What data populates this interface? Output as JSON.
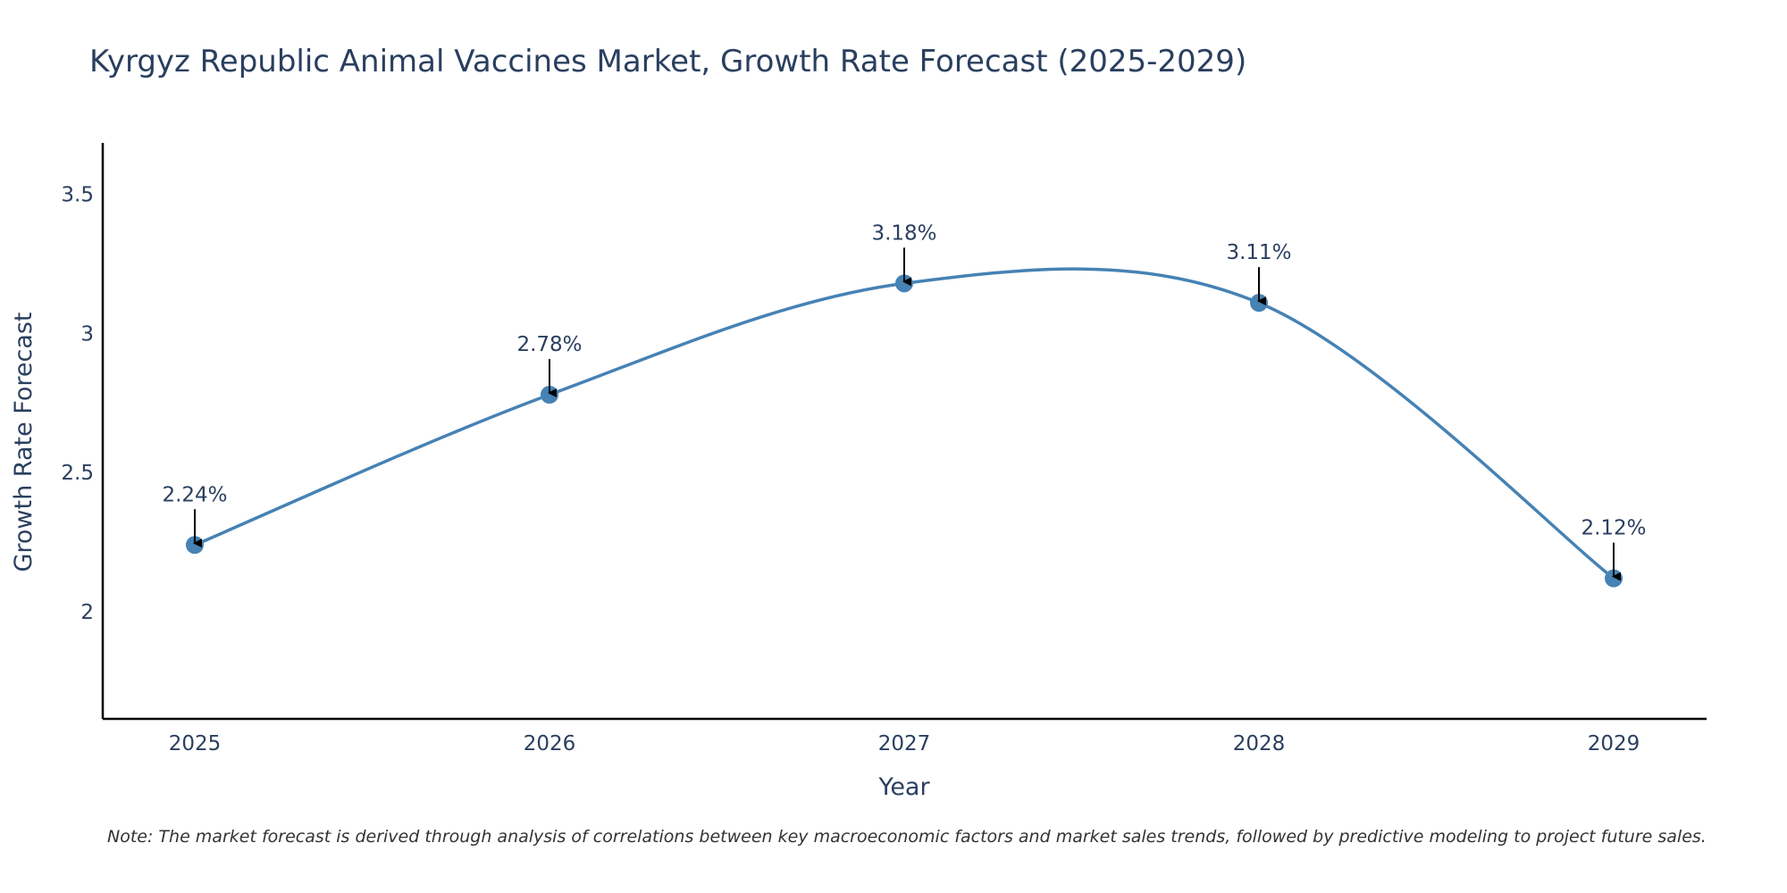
{
  "chart_data": {
    "type": "line",
    "title": "Kyrgyz Republic Animal Vaccines Market, Growth Rate Forecast (2025-2029)",
    "xlabel": "Year",
    "ylabel": "Growth Rate Forecast",
    "categories": [
      "2025",
      "2026",
      "2027",
      "2028",
      "2029"
    ],
    "series": [
      {
        "name": "Growth Rate Forecast",
        "values": [
          2.24,
          2.78,
          3.18,
          3.11,
          2.12
        ],
        "labels": [
          "2.24%",
          "2.78%",
          "3.18%",
          "3.11%",
          "2.12%"
        ],
        "color": "#4682b4"
      }
    ],
    "y_ticks": [
      2,
      2.5,
      3,
      3.5
    ],
    "y_tick_labels": [
      "2",
      "2.5",
      "3",
      "3.5"
    ],
    "ylim": [
      1.615,
      3.685
    ],
    "grid": false,
    "line_shape": "spline",
    "annotation_arrow_color": "#000000",
    "axis_color": "#000000"
  },
  "note": "Note: The market forecast is derived through analysis of correlations between key macroeconomic factors and market sales trends, followed by predictive modeling to project future sales."
}
